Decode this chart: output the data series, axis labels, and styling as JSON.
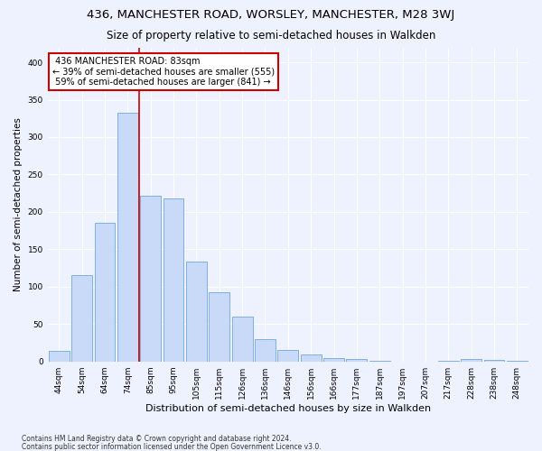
{
  "title": "436, MANCHESTER ROAD, WORSLEY, MANCHESTER, M28 3WJ",
  "subtitle": "Size of property relative to semi-detached houses in Walkden",
  "xlabel": "Distribution of semi-detached houses by size in Walkden",
  "ylabel": "Number of semi-detached properties",
  "categories": [
    "44sqm",
    "54sqm",
    "64sqm",
    "74sqm",
    "85sqm",
    "95sqm",
    "105sqm",
    "115sqm",
    "126sqm",
    "136sqm",
    "146sqm",
    "156sqm",
    "166sqm",
    "177sqm",
    "187sqm",
    "197sqm",
    "207sqm",
    "217sqm",
    "228sqm",
    "238sqm",
    "248sqm"
  ],
  "values": [
    14,
    115,
    186,
    332,
    222,
    218,
    133,
    92,
    60,
    30,
    15,
    9,
    5,
    3,
    1,
    0,
    0,
    1,
    3,
    2,
    1
  ],
  "bar_color": "#c9daf8",
  "bar_edge_color": "#6fa8dc",
  "vline_color": "#cc0000",
  "vline_x": 3.5,
  "property_line_label": "436 MANCHESTER ROAD: 83sqm",
  "pct_smaller": 39,
  "n_smaller": 555,
  "pct_larger": 59,
  "n_larger": 841,
  "annotation_box_color": "#ffffff",
  "annotation_box_edge": "#cc0000",
  "footnote1": "Contains HM Land Registry data © Crown copyright and database right 2024.",
  "footnote2": "Contains public sector information licensed under the Open Government Licence v3.0.",
  "ylim": [
    0,
    420
  ],
  "title_fontsize": 9.5,
  "subtitle_fontsize": 8.5,
  "ylabel_fontsize": 7.5,
  "xlabel_fontsize": 8,
  "tick_fontsize": 6.5,
  "annotation_fontsize": 7,
  "footnote_fontsize": 5.5,
  "background_color": "#eef2ff",
  "plot_background": "#eef2ff"
}
